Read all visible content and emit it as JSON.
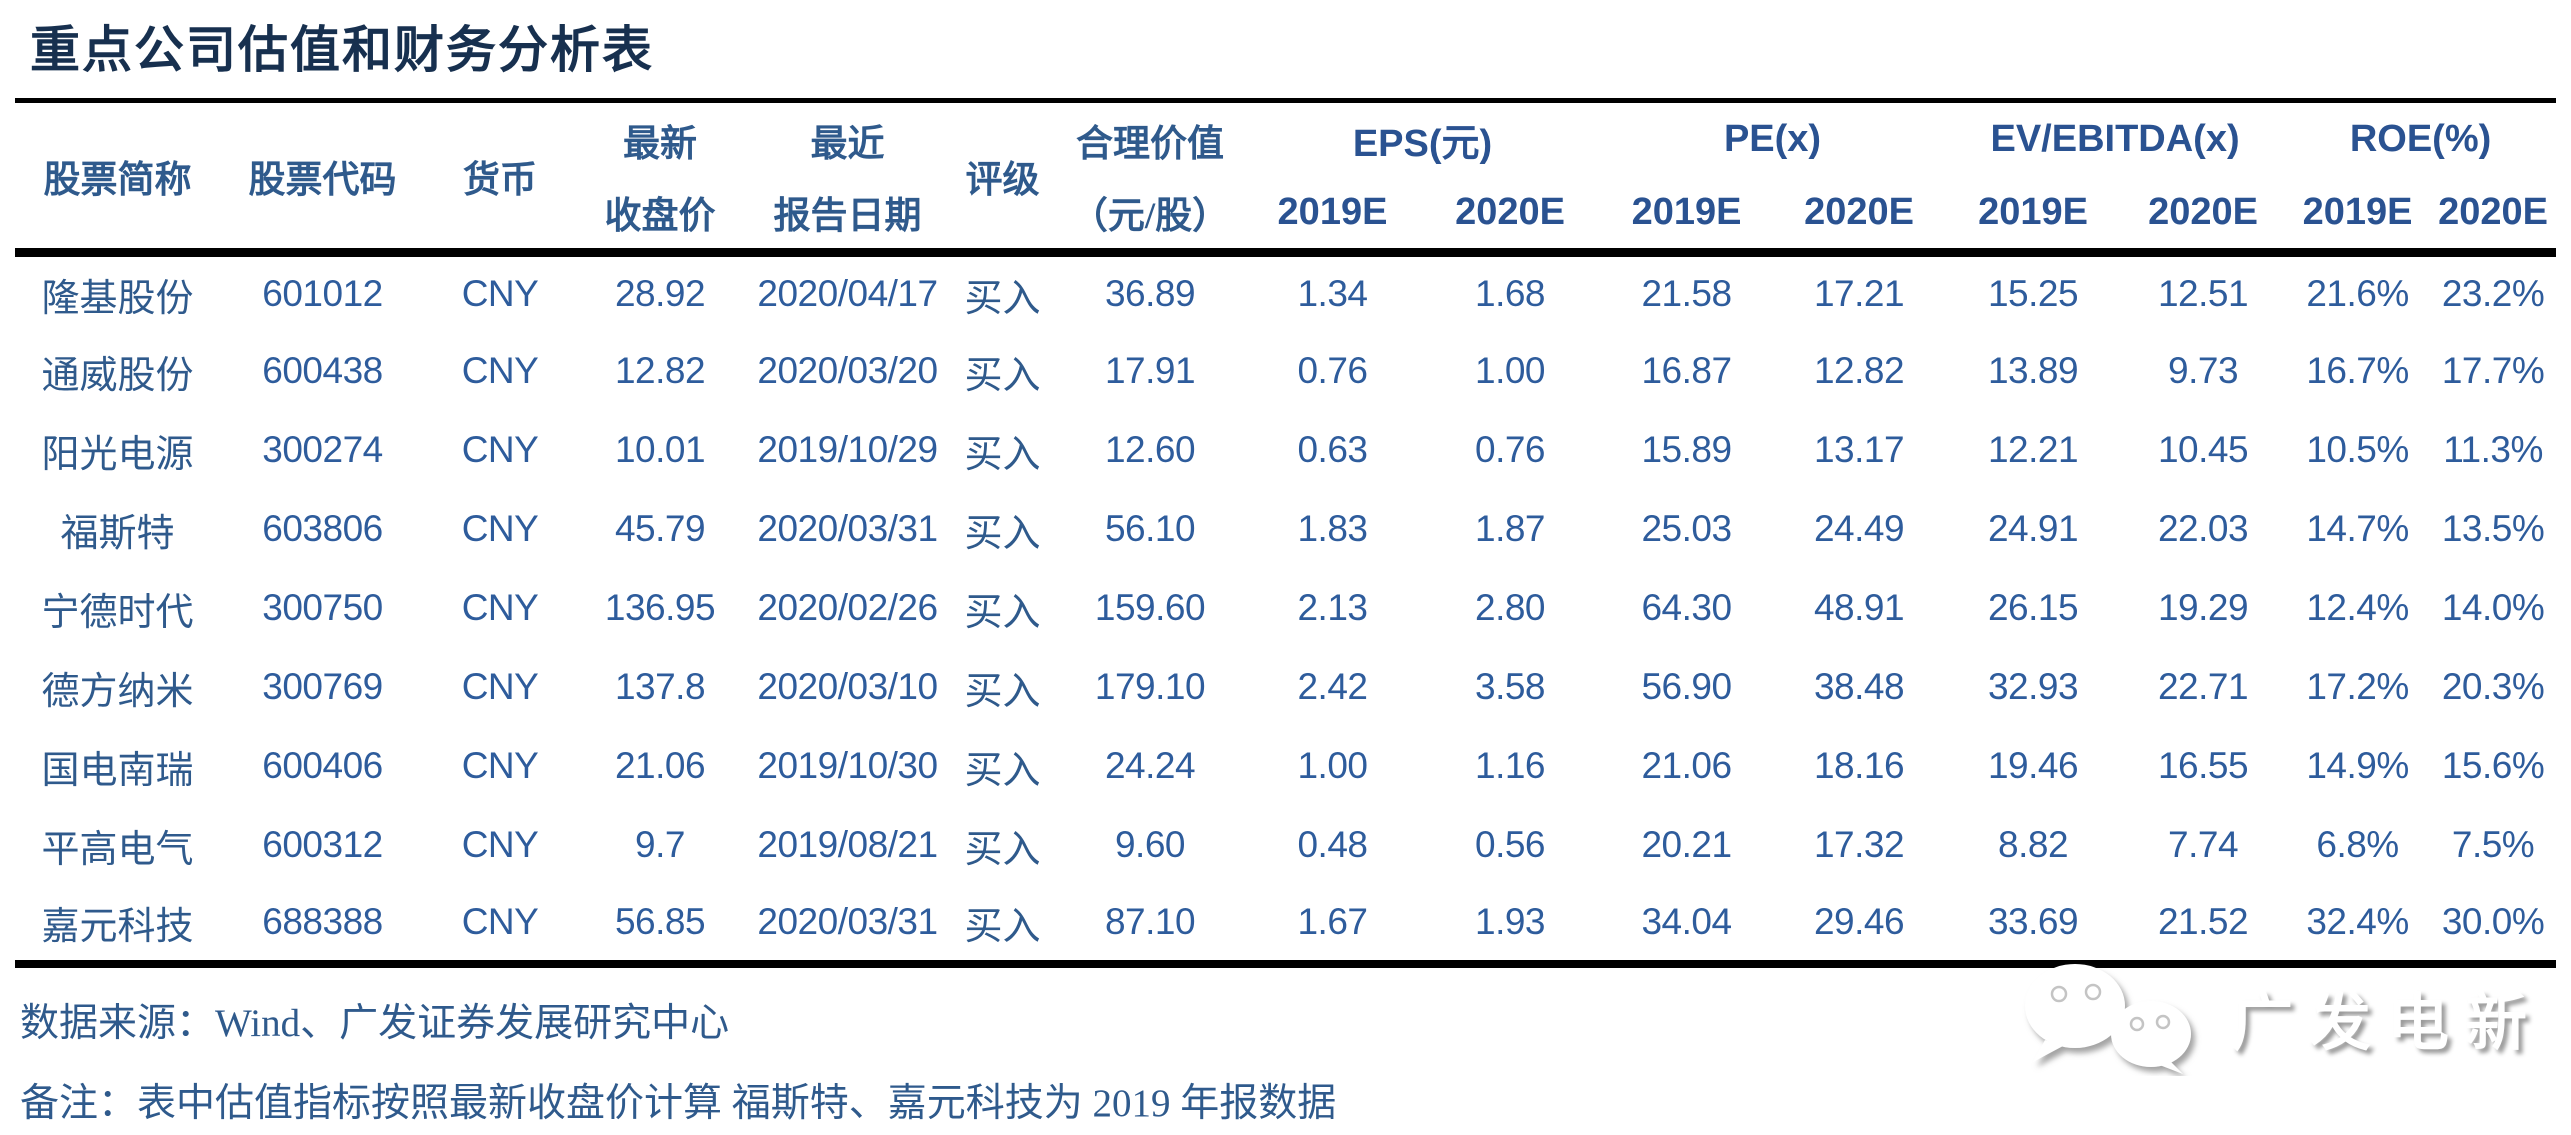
{
  "title": "重点公司估值和财务分析表",
  "colors": {
    "title": "#17304F",
    "header_cn": "#2F5A8C",
    "header_en": "#2A5291",
    "data_cn": "#2F5A8C",
    "data_num": "#2E5C9C",
    "rule": "#000000",
    "logo_shadow": "#9a9a9a"
  },
  "table": {
    "col_headers": {
      "stock_name": "股票简称",
      "stock_code": "股票代码",
      "currency": "货币",
      "latest_close": [
        "最新",
        "收盘价"
      ],
      "recent_report": [
        "最近",
        "报告日期"
      ],
      "rating": "评级",
      "fair_value": [
        "合理价值",
        "（元/股）"
      ],
      "groups": [
        "EPS(元)",
        "PE(x)",
        "EV/EBITDA(x)",
        "ROE(%)"
      ],
      "sub_years": [
        "2019E",
        "2020E"
      ]
    }
  },
  "chart_data": {
    "type": "table",
    "title": "重点公司估值和财务分析表",
    "columns": [
      "股票简称",
      "股票代码",
      "货币",
      "最新收盘价",
      "最近报告日期",
      "评级",
      "合理价值（元/股）",
      "EPS(元) 2019E",
      "EPS(元) 2020E",
      "PE(x) 2019E",
      "PE(x) 2020E",
      "EV/EBITDA(x) 2019E",
      "EV/EBITDA(x) 2020E",
      "ROE(%) 2019E",
      "ROE(%) 2020E"
    ],
    "rows": [
      [
        "隆基股份",
        "601012",
        "CNY",
        "28.92",
        "2020/04/17",
        "买入",
        "36.89",
        "1.34",
        "1.68",
        "21.58",
        "17.21",
        "15.25",
        "12.51",
        "21.6%",
        "23.2%"
      ],
      [
        "通威股份",
        "600438",
        "CNY",
        "12.82",
        "2020/03/20",
        "买入",
        "17.91",
        "0.76",
        "1.00",
        "16.87",
        "12.82",
        "13.89",
        "9.73",
        "16.7%",
        "17.7%"
      ],
      [
        "阳光电源",
        "300274",
        "CNY",
        "10.01",
        "2019/10/29",
        "买入",
        "12.60",
        "0.63",
        "0.76",
        "15.89",
        "13.17",
        "12.21",
        "10.45",
        "10.5%",
        "11.3%"
      ],
      [
        "福斯特",
        "603806",
        "CNY",
        "45.79",
        "2020/03/31",
        "买入",
        "56.10",
        "1.83",
        "1.87",
        "25.03",
        "24.49",
        "24.91",
        "22.03",
        "14.7%",
        "13.5%"
      ],
      [
        "宁德时代",
        "300750",
        "CNY",
        "136.95",
        "2020/02/26",
        "买入",
        "159.60",
        "2.13",
        "2.80",
        "64.30",
        "48.91",
        "26.15",
        "19.29",
        "12.4%",
        "14.0%"
      ],
      [
        "德方纳米",
        "300769",
        "CNY",
        "137.8",
        "2020/03/10",
        "买入",
        "179.10",
        "2.42",
        "3.58",
        "56.90",
        "38.48",
        "32.93",
        "22.71",
        "17.2%",
        "20.3%"
      ],
      [
        "国电南瑞",
        "600406",
        "CNY",
        "21.06",
        "2019/10/30",
        "买入",
        "24.24",
        "1.00",
        "1.16",
        "21.06",
        "18.16",
        "19.46",
        "16.55",
        "14.9%",
        "15.6%"
      ],
      [
        "平高电气",
        "600312",
        "CNY",
        "9.7",
        "2019/08/21",
        "买入",
        "9.60",
        "0.48",
        "0.56",
        "20.21",
        "17.32",
        "8.82",
        "7.74",
        "6.8%",
        "7.5%"
      ],
      [
        "嘉元科技",
        "688388",
        "CNY",
        "56.85",
        "2020/03/31",
        "买入",
        "87.10",
        "1.67",
        "1.93",
        "34.04",
        "29.46",
        "33.69",
        "21.52",
        "32.4%",
        "30.0%"
      ]
    ]
  },
  "footer": {
    "source": "数据来源：Wind、广发证券发展研究中心",
    "note": "备注：表中估值指标按照最新收盘价计算 福斯特、嘉元科技为 2019 年报数据"
  },
  "logo": {
    "label": "广发电新",
    "icon": "wechat-icon"
  }
}
